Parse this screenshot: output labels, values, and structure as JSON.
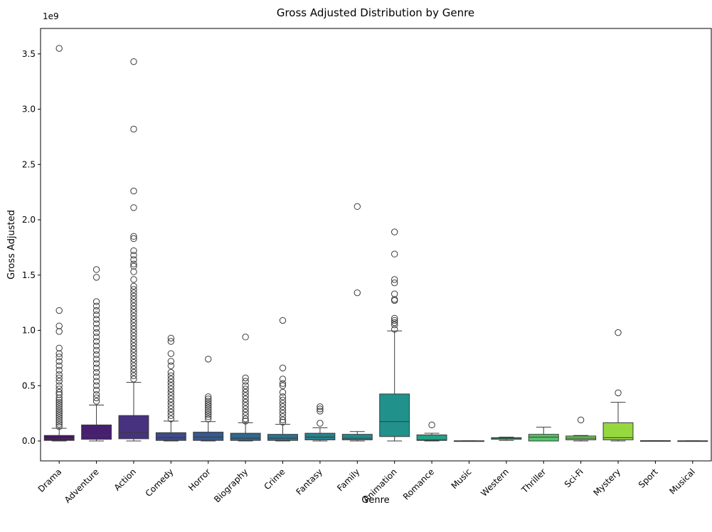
{
  "chart_data": {
    "type": "box",
    "title": "Gross Adjusted Distribution by Genre",
    "xlabel": "Genre",
    "ylabel": "Gross Adjusted",
    "y_offset_label": "1e9",
    "y_unit_multiplier": 1000000000,
    "ylim": [
      -0.18,
      3.73
    ],
    "y_ticks": [
      0.0,
      0.5,
      1.0,
      1.5,
      2.0,
      2.5,
      3.0,
      3.5
    ],
    "y_tick_labels": [
      "0.0",
      "0.5",
      "1.0",
      "1.5",
      "2.0",
      "2.5",
      "3.0",
      "3.5"
    ],
    "grid": false,
    "legend": "none",
    "categories": [
      {
        "name": "Drama",
        "color": "#481467",
        "q1": 0.005,
        "median": 0.02,
        "q3": 0.05,
        "whisker_low": 0.0,
        "whisker_high": 0.115,
        "outliers": [
          3.55,
          1.18,
          1.04,
          0.99,
          0.84,
          0.79,
          0.76,
          0.72,
          0.68,
          0.64,
          0.6,
          0.57,
          0.54,
          0.5,
          0.47,
          0.44,
          0.42,
          0.39,
          0.37,
          0.35,
          0.33,
          0.31,
          0.29,
          0.27,
          0.25,
          0.23,
          0.21,
          0.19,
          0.17,
          0.15,
          0.13
        ]
      },
      {
        "name": "Adventure",
        "color": "#471f70",
        "q1": 0.015,
        "median": 0.05,
        "q3": 0.145,
        "whisker_low": 0.0,
        "whisker_high": 0.325,
        "outliers": [
          1.55,
          1.48,
          1.26,
          1.22,
          1.18,
          1.14,
          1.1,
          1.06,
          1.02,
          0.98,
          0.94,
          0.9,
          0.86,
          0.82,
          0.78,
          0.74,
          0.7,
          0.66,
          0.62,
          0.58,
          0.54,
          0.5,
          0.46,
          0.42,
          0.39,
          0.36
        ]
      },
      {
        "name": "Action",
        "color": "#46327e",
        "q1": 0.02,
        "median": 0.075,
        "q3": 0.23,
        "whisker_low": 0.0,
        "whisker_high": 0.53,
        "outliers": [
          3.43,
          2.82,
          2.26,
          2.11,
          1.85,
          1.83,
          1.72,
          1.68,
          1.64,
          1.6,
          1.58,
          1.53,
          1.46,
          1.4,
          1.37,
          1.34,
          1.31,
          1.28,
          1.25,
          1.22,
          1.19,
          1.16,
          1.13,
          1.1,
          1.07,
          1.04,
          1.01,
          0.98,
          0.95,
          0.92,
          0.89,
          0.86,
          0.83,
          0.8,
          0.77,
          0.74,
          0.71,
          0.68,
          0.65,
          0.62,
          0.59,
          0.56
        ]
      },
      {
        "name": "Comedy",
        "color": "#3e4a89",
        "q1": 0.005,
        "median": 0.03,
        "q3": 0.075,
        "whisker_low": 0.0,
        "whisker_high": 0.18,
        "outliers": [
          0.93,
          0.9,
          0.79,
          0.72,
          0.68,
          0.62,
          0.59,
          0.56,
          0.53,
          0.5,
          0.47,
          0.44,
          0.41,
          0.38,
          0.35,
          0.32,
          0.29,
          0.26,
          0.23,
          0.2
        ]
      },
      {
        "name": "Horror",
        "color": "#37598c",
        "q1": 0.005,
        "median": 0.035,
        "q3": 0.08,
        "whisker_low": 0.0,
        "whisker_high": 0.175,
        "outliers": [
          0.74,
          0.4,
          0.38,
          0.36,
          0.34,
          0.32,
          0.3,
          0.28,
          0.26,
          0.24,
          0.22,
          0.2
        ]
      },
      {
        "name": "Biography",
        "color": "#31678e",
        "q1": 0.005,
        "median": 0.025,
        "q3": 0.07,
        "whisker_low": 0.0,
        "whisker_high": 0.165,
        "outliers": [
          0.94,
          0.57,
          0.54,
          0.5,
          0.47,
          0.44,
          0.41,
          0.38,
          0.35,
          0.32,
          0.29,
          0.26,
          0.23,
          0.2,
          0.18
        ]
      },
      {
        "name": "Crime",
        "color": "#2c728e",
        "q1": 0.005,
        "median": 0.025,
        "q3": 0.06,
        "whisker_low": 0.0,
        "whisker_high": 0.15,
        "outliers": [
          1.09,
          0.66,
          0.56,
          0.52,
          0.5,
          0.44,
          0.4,
          0.37,
          0.34,
          0.31,
          0.28,
          0.25,
          0.22,
          0.19,
          0.17
        ]
      },
      {
        "name": "Fantasy",
        "color": "#26828e",
        "q1": 0.01,
        "median": 0.035,
        "q3": 0.07,
        "whisker_low": 0.0,
        "whisker_high": 0.12,
        "outliers": [
          0.31,
          0.29,
          0.27,
          0.16
        ]
      },
      {
        "name": "Family",
        "color": "#23898e",
        "q1": 0.01,
        "median": 0.025,
        "q3": 0.06,
        "whisker_low": 0.0,
        "whisker_high": 0.085,
        "outliers": [
          2.12,
          1.34
        ]
      },
      {
        "name": "Animation",
        "color": "#21918c",
        "q1": 0.04,
        "median": 0.175,
        "q3": 0.425,
        "whisker_low": 0.0,
        "whisker_high": 0.995,
        "outliers": [
          1.89,
          1.69,
          1.46,
          1.43,
          1.33,
          1.28,
          1.27,
          1.11,
          1.09,
          1.07,
          1.05,
          1.01
        ]
      },
      {
        "name": "Romance",
        "color": "#1fa187",
        "q1": 0.005,
        "median": 0.01,
        "q3": 0.055,
        "whisker_low": 0.0,
        "whisker_high": 0.07,
        "outliers": [
          0.145
        ]
      },
      {
        "name": "Music",
        "color": "#2db27d",
        "q1": 0.0,
        "median": 0.0,
        "q3": 0.002,
        "whisker_low": 0.0,
        "whisker_high": 0.002,
        "outliers": []
      },
      {
        "name": "Western",
        "color": "#3bbb75",
        "q1": 0.015,
        "median": 0.025,
        "q3": 0.03,
        "whisker_low": 0.005,
        "whisker_high": 0.035,
        "outliers": []
      },
      {
        "name": "Thriller",
        "color": "#54c568",
        "q1": 0.0,
        "median": 0.035,
        "q3": 0.06,
        "whisker_low": 0.0,
        "whisker_high": 0.125,
        "outliers": []
      },
      {
        "name": "Sci-Fi",
        "color": "#6ccd5a",
        "q1": 0.01,
        "median": 0.025,
        "q3": 0.045,
        "whisker_low": 0.0,
        "whisker_high": 0.05,
        "outliers": [
          0.19
        ]
      },
      {
        "name": "Mystery",
        "color": "#95d840",
        "q1": 0.01,
        "median": 0.03,
        "q3": 0.165,
        "whisker_low": 0.0,
        "whisker_high": 0.35,
        "outliers": [
          0.98,
          0.435
        ]
      },
      {
        "name": "Sport",
        "color": "#b8de29",
        "q1": 0.0,
        "median": 0.0,
        "q3": 0.003,
        "whisker_low": 0.0,
        "whisker_high": 0.003,
        "outliers": []
      },
      {
        "name": "Musical",
        "color": "#dde318",
        "q1": 0.0,
        "median": 0.0,
        "q3": 0.002,
        "whisker_low": 0.0,
        "whisker_high": 0.002,
        "outliers": []
      }
    ]
  }
}
